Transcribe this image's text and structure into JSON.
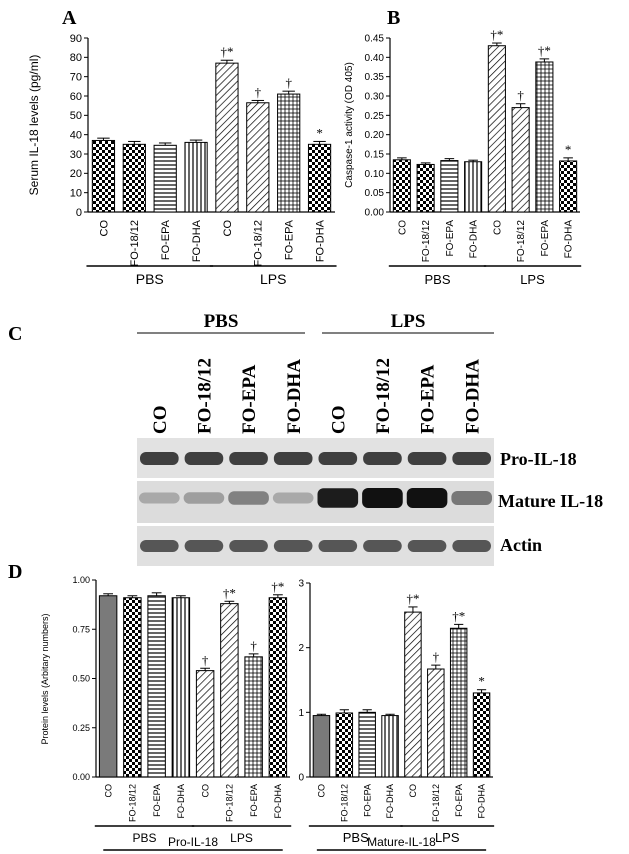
{
  "figure": {
    "panel_labels": [
      "A",
      "B",
      "C",
      "D"
    ],
    "colors": {
      "bar_outline": "#000000",
      "bar_fill": "#7a7a7a",
      "background": "#ffffff"
    },
    "blot": {
      "group_labels": [
        "PBS",
        "LPS"
      ],
      "lane_labels": [
        "CO",
        "FO-18/12",
        "FO-EPA",
        "FO-DHA",
        "CO",
        "FO-18/12",
        "FO-EPA",
        "FO-DHA"
      ],
      "row_labels": [
        "Pro-IL-18",
        "Mature IL-18",
        "Actin"
      ]
    }
  },
  "chart_data": [
    {
      "panel": "A",
      "type": "bar",
      "title": "",
      "ylabel": "Serum IL-18 levels (pg/ml)",
      "ylim": [
        0,
        90
      ],
      "yticks": [
        0,
        10,
        20,
        30,
        40,
        50,
        60,
        70,
        80,
        90
      ],
      "categories": [
        "CO",
        "FO-18/12",
        "FO-EPA",
        "FO-DHA",
        "CO",
        "FO-18/12",
        "FO-EPA",
        "FO-DHA"
      ],
      "values": [
        37,
        35,
        34.5,
        36,
        77,
        56.5,
        61,
        35
      ],
      "errors": [
        1.2,
        1.5,
        1.2,
        1.2,
        1.5,
        1.2,
        1.5,
        1.5
      ],
      "patterns": [
        "check",
        "check",
        "hlines",
        "vlines",
        "diag",
        "diag",
        "grid",
        "check"
      ],
      "annotations": [
        "",
        "",
        "",
        "",
        "†*",
        "†",
        "†",
        "*"
      ],
      "groups": [
        {
          "label": "PBS",
          "from": 0,
          "to": 3
        },
        {
          "label": "LPS",
          "from": 4,
          "to": 7
        }
      ]
    },
    {
      "panel": "B",
      "type": "bar",
      "title": "",
      "ylabel": "Caspase-1 activity (OD 405)",
      "ylim": [
        0,
        0.45
      ],
      "yticks": [
        "0.00",
        "0.05",
        "0.10",
        "0.15",
        "0.20",
        "0.25",
        "0.30",
        "0.35",
        "0.40",
        "0.45"
      ],
      "categories": [
        "CO",
        "FO-18/12",
        "FO-EPA",
        "FO-DHA",
        "CO",
        "FO-18/12",
        "FO-EPA",
        "FO-DHA"
      ],
      "values": [
        0.135,
        0.123,
        0.133,
        0.13,
        0.43,
        0.27,
        0.388,
        0.132
      ],
      "errors": [
        0.005,
        0.004,
        0.005,
        0.004,
        0.007,
        0.01,
        0.008,
        0.008
      ],
      "patterns": [
        "check",
        "check",
        "hlines",
        "vlines",
        "diag",
        "diag",
        "grid",
        "check"
      ],
      "annotations": [
        "",
        "",
        "",
        "",
        "†*",
        "†",
        "†*",
        "*"
      ],
      "groups": [
        {
          "label": "PBS",
          "from": 0,
          "to": 3
        },
        {
          "label": "LPS",
          "from": 4,
          "to": 7
        }
      ]
    },
    {
      "panel": "D-left",
      "type": "bar",
      "title": "",
      "ylabel": "Protein levels (Arbitary numbers)",
      "ylim": [
        0,
        1
      ],
      "yticks": [
        "0.00",
        "0.25",
        "0.50",
        "0.75",
        "1.00"
      ],
      "categories": [
        "CO",
        "FO-18/12",
        "FO-EPA",
        "FO-DHA",
        "CO",
        "FO-18/12",
        "FO-EPA",
        "FO-DHA"
      ],
      "values": [
        0.92,
        0.91,
        0.92,
        0.91,
        0.54,
        0.88,
        0.61,
        0.91
      ],
      "errors": [
        0.01,
        0.01,
        0.015,
        0.01,
        0.012,
        0.012,
        0.015,
        0.015
      ],
      "patterns": [
        "solid",
        "check",
        "hlines",
        "vlines",
        "diag",
        "diag",
        "grid",
        "check"
      ],
      "annotations": [
        "",
        "",
        "",
        "",
        "†",
        "†*",
        "†",
        "†*"
      ],
      "groups": [
        {
          "label": "PBS",
          "from": 0,
          "to": 3
        },
        {
          "label": "LPS",
          "from": 4,
          "to": 7
        }
      ],
      "footer": "Pro-IL-18"
    },
    {
      "panel": "D-right",
      "type": "bar",
      "title": "",
      "ylabel": "",
      "ylim": [
        0,
        3
      ],
      "yticks": [
        "0",
        "1",
        "2",
        "3"
      ],
      "categories": [
        "CO",
        "FO-18/12",
        "FO-EPA",
        "FO-DHA",
        "CO",
        "FO-18/12",
        "FO-EPA",
        "FO-DHA"
      ],
      "values": [
        0.95,
        0.99,
        1.0,
        0.95,
        2.55,
        1.67,
        2.3,
        1.3
      ],
      "errors": [
        0.02,
        0.05,
        0.04,
        0.02,
        0.08,
        0.06,
        0.06,
        0.05
      ],
      "patterns": [
        "solid",
        "check",
        "hlines",
        "vlines",
        "diag",
        "diag",
        "grid",
        "check"
      ],
      "annotations": [
        "",
        "",
        "",
        "",
        "†*",
        "†",
        "†*",
        "*"
      ],
      "groups": [
        {
          "label": "PBS",
          "from": 0,
          "to": 3
        },
        {
          "label": "LPS",
          "from": 4,
          "to": 7
        }
      ],
      "footer": "Mature-IL-18"
    }
  ]
}
